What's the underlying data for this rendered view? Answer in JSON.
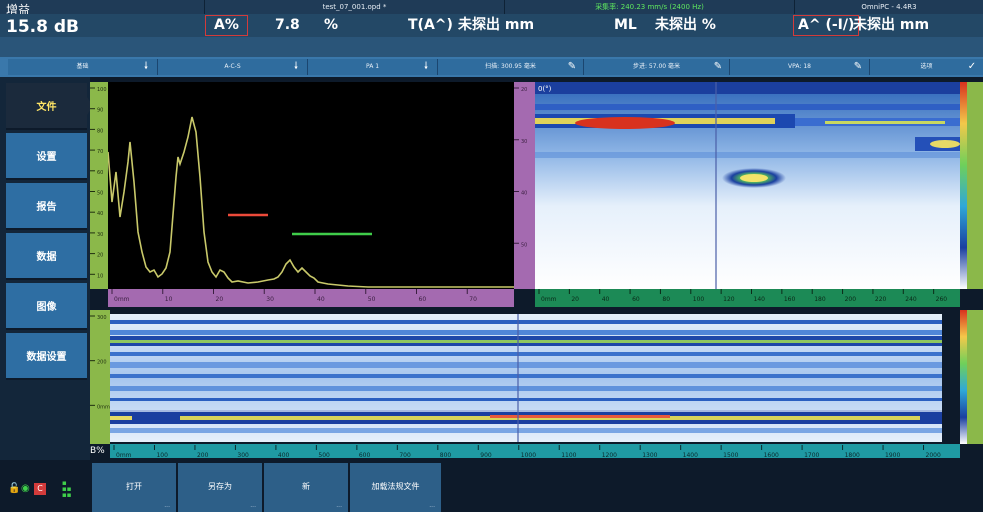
{
  "header": {
    "gain_title": "增益",
    "gain_value": "15.8 dB",
    "filename": "test_07_001.opd *",
    "acq_rate": "采集率: 240.23 mm/s (2400 Hz)",
    "app_name": "OmniPC - 4.4R3",
    "fields": {
      "a_pct_label": "A%",
      "a_pct_value": "7.8",
      "a_pct_unit": "%",
      "t_label": "T(A^)",
      "t_value": "未探出 mm",
      "ml_label": "ML",
      "ml_value": "未探出 %",
      "a_i_label": "A^ (-I/)",
      "a_i_value": "未探出 mm"
    }
  },
  "params": [
    {
      "label": "基础",
      "icon": "down-arrow"
    },
    {
      "label": "A-C-S",
      "icon": "down-arrow"
    },
    {
      "label": "PA 1",
      "icon": "down-arrow"
    },
    {
      "label": "扫描: 300.95 毫米",
      "icon": "pencil"
    },
    {
      "label": "步进: 57.00 毫米",
      "icon": "pencil"
    },
    {
      "label": "VPA: 18",
      "icon": "pencil"
    },
    {
      "label": "选项",
      "icon": "check"
    }
  ],
  "sidebar": {
    "items": [
      {
        "label": "文件",
        "active": true
      },
      {
        "label": "设置",
        "active": false
      },
      {
        "label": "报告",
        "active": false
      },
      {
        "label": "数据",
        "active": false
      },
      {
        "label": "图像",
        "active": false
      },
      {
        "label": "数据设置",
        "active": false
      }
    ]
  },
  "ascan": {
    "h_ticks": [
      "0mm",
      "10",
      "20",
      "30",
      "40",
      "50",
      "60",
      "70"
    ],
    "v_ticks": [
      "100",
      "90",
      "80",
      "70",
      "60",
      "50",
      "40",
      "30",
      "20",
      "10"
    ]
  },
  "cscan": {
    "corner_label": "0(°)",
    "v_ticks": [
      "20",
      "30",
      "40",
      "50"
    ],
    "h_ticks": [
      "0mm",
      "20",
      "40",
      "60",
      "80",
      "100",
      "120",
      "140",
      "160",
      "180",
      "200",
      "220",
      "240",
      "260"
    ]
  },
  "bscan": {
    "label": "B%",
    "v_ticks": [
      "300",
      "200",
      "0mm"
    ],
    "h_ticks": [
      "0mm",
      "100",
      "200",
      "300",
      "400",
      "500",
      "600",
      "700",
      "800",
      "900",
      "1000",
      "1100",
      "1200",
      "1300",
      "1400",
      "1500",
      "1600",
      "1700",
      "1800",
      "1900",
      "2000"
    ]
  },
  "toolbar": {
    "buttons": [
      {
        "label": "打开"
      },
      {
        "label": "另存为"
      },
      {
        "label": "新"
      },
      {
        "label": "加载法规文件"
      }
    ]
  },
  "status": {
    "icons": [
      "lock-icon",
      "globe-icon",
      "c-badge-icon",
      "battery-icon"
    ]
  },
  "colors": {
    "accent_red": "#d23b3b",
    "header_bg": "#234866",
    "sidebar_bg": "#2e6ea3",
    "ascan_trace": "#c9c96a"
  }
}
